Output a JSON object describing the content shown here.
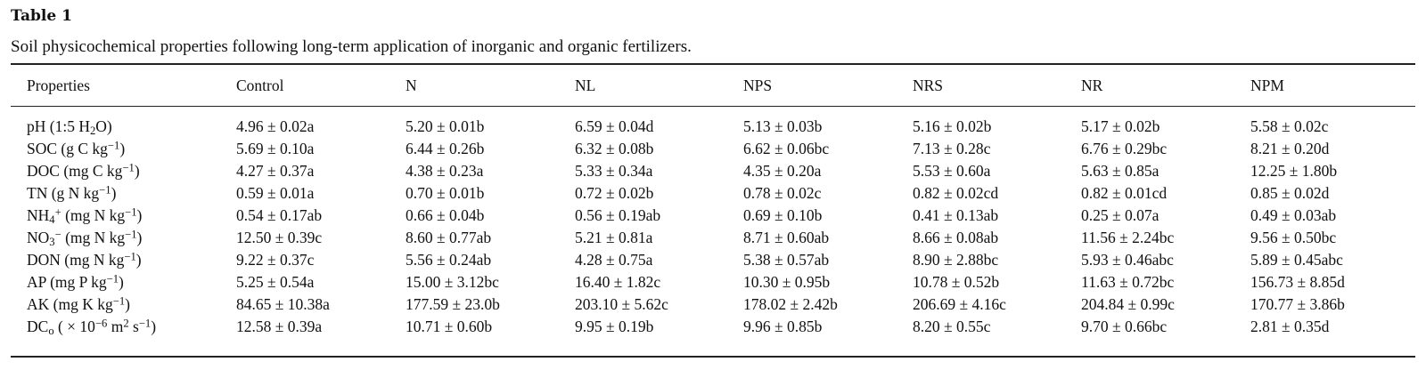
{
  "table": {
    "title": "Table 1",
    "caption": "Soil physicochemical properties following long-term application of inorganic and organic fertilizers.",
    "headers": [
      "Properties",
      "Control",
      "N",
      "NL",
      "NPS",
      "NRS",
      "NR",
      "NPM"
    ],
    "rows": [
      {
        "property": {
          "base": "pH (1:5 H",
          "sub": "2",
          "after": "O)"
        },
        "values": [
          "4.96 ± 0.02a",
          "5.20 ± 0.01b",
          "6.59 ± 0.04d",
          "5.13 ± 0.03b",
          "5.16 ± 0.02b",
          "5.17 ± 0.02b",
          "5.58 ± 0.02c"
        ]
      },
      {
        "property": {
          "base": "SOC (g C kg",
          "sup": "−1",
          "after": ")"
        },
        "values": [
          "5.69 ± 0.10a",
          "6.44 ± 0.26b",
          "6.32 ± 0.08b",
          "6.62 ± 0.06bc",
          "7.13 ± 0.28c",
          "6.76 ± 0.29bc",
          "8.21 ± 0.20d"
        ]
      },
      {
        "property": {
          "base": "DOC (mg C kg",
          "sup": "−1",
          "after": ")"
        },
        "values": [
          "4.27 ± 0.37a",
          "4.38 ± 0.23a",
          "5.33 ± 0.34a",
          "4.35 ± 0.20a",
          "5.53 ± 0.60a",
          "5.63 ± 0.85a",
          "12.25 ± 1.80b"
        ]
      },
      {
        "property": {
          "base": "TN (g N kg",
          "sup": "−1",
          "after": ")"
        },
        "values": [
          "0.59 ± 0.01a",
          "0.70 ± 0.01b",
          "0.72 ± 0.02b",
          "0.78 ± 0.02c",
          "0.82 ± 0.02cd",
          "0.82 ± 0.01cd",
          "0.85 ± 0.02d"
        ]
      },
      {
        "property": {
          "base": "NH",
          "sub": "4",
          "sup": "+",
          "after": " (mg N kg",
          "sup2": "−1",
          "after2": ")"
        },
        "values": [
          "0.54 ± 0.17ab",
          "0.66 ± 0.04b",
          "0.56 ± 0.19ab",
          "0.69 ± 0.10b",
          "0.41 ± 0.13ab",
          "0.25 ± 0.07a",
          "0.49 ± 0.03ab"
        ]
      },
      {
        "property": {
          "base": "NO",
          "sub": "3",
          "sup": "−",
          "after": " (mg N kg",
          "sup2": "−1",
          "after2": ")"
        },
        "values": [
          "12.50 ± 0.39c",
          "8.60 ± 0.77ab",
          "5.21 ± 0.81a",
          "8.71 ± 0.60ab",
          "8.66 ± 0.08ab",
          "11.56 ± 2.24bc",
          "9.56 ± 0.50bc"
        ]
      },
      {
        "property": {
          "base": "DON (mg N kg",
          "sup": "−1",
          "after": ")"
        },
        "values": [
          "9.22 ± 0.37c",
          "5.56 ± 0.24ab",
          "4.28 ± 0.75a",
          "5.38 ± 0.57ab",
          "8.90 ± 2.88bc",
          "5.93 ± 0.46abc",
          "5.89 ± 0.45abc"
        ]
      },
      {
        "property": {
          "base": "AP (mg P kg",
          "sup": "−1",
          "after": ")"
        },
        "values": [
          "5.25 ± 0.54a",
          "15.00 ± 3.12bc",
          "16.40 ± 1.82c",
          "10.30 ± 0.95b",
          "10.78 ± 0.52b",
          "11.63 ± 0.72bc",
          "156.73 ± 8.85d"
        ]
      },
      {
        "property": {
          "base": "AK (mg K kg",
          "sup": "−1",
          "after": ")"
        },
        "values": [
          "84.65 ± 10.38a",
          "177.59 ± 23.0b",
          "203.10 ± 5.62c",
          "178.02 ± 2.42b",
          "206.69 ± 4.16c",
          "204.84 ± 0.99c",
          "170.77 ± 3.86b"
        ]
      },
      {
        "property": {
          "base": "DC",
          "sub": "o",
          "after": " ( × 10",
          "sup": "−6",
          "after2": " m",
          "sup2": "2",
          "after3": " s",
          "sup3": "−1",
          "after4": ")"
        },
        "values": [
          "12.58 ± 0.39a",
          "10.71 ± 0.60b",
          "9.95 ± 0.19b",
          "9.96 ± 0.85b",
          "8.20 ± 0.55c",
          "9.70 ± 0.66bc",
          "2.81 ± 0.35d"
        ]
      }
    ]
  }
}
